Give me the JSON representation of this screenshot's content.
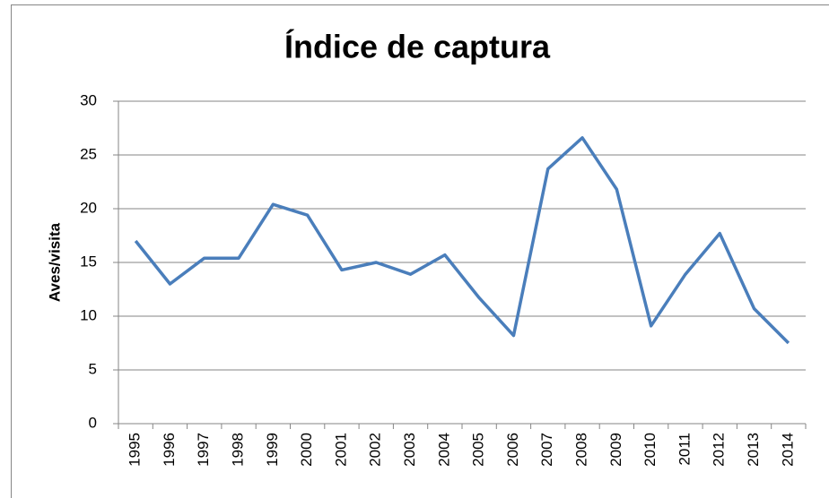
{
  "chart_data": {
    "type": "line",
    "title": "Índice de captura",
    "y_label": "Aves/visita",
    "categories": [
      "1995",
      "1996",
      "1997",
      "1998",
      "1999",
      "2000",
      "2001",
      "2002",
      "2003",
      "2004",
      "2005",
      "2006",
      "2007",
      "2008",
      "2009",
      "2010",
      "2011",
      "2012",
      "2013",
      "2014"
    ],
    "series": [
      {
        "name": "Aves/visita",
        "color": "#4a7ebb",
        "values": [
          17.0,
          13.0,
          15.4,
          15.4,
          20.4,
          19.4,
          14.3,
          15.0,
          13.9,
          15.7,
          11.7,
          8.2,
          23.7,
          26.6,
          21.8,
          9.1,
          13.9,
          17.7,
          10.7,
          7.5
        ]
      }
    ],
    "ylim": [
      0,
      30
    ],
    "yticks": [
      0,
      5,
      10,
      15,
      20,
      25,
      30
    ],
    "grid": true
  }
}
